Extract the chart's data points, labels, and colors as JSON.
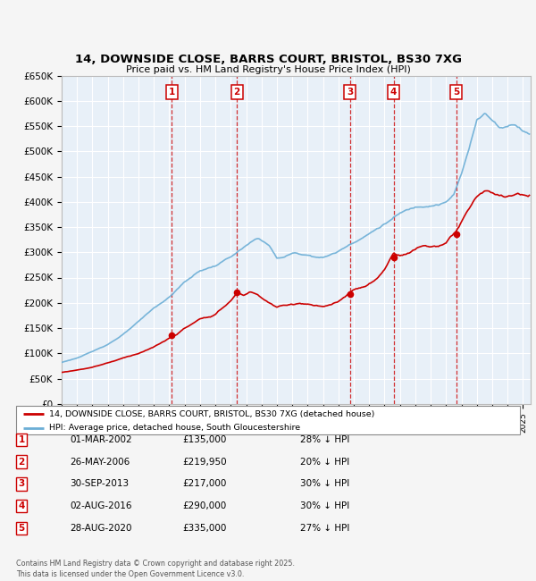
{
  "title": "14, DOWNSIDE CLOSE, BARRS COURT, BRISTOL, BS30 7XG",
  "subtitle": "Price paid vs. HM Land Registry's House Price Index (HPI)",
  "ylim": [
    0,
    650000
  ],
  "yticks": [
    0,
    50000,
    100000,
    150000,
    200000,
    250000,
    300000,
    350000,
    400000,
    450000,
    500000,
    550000,
    600000,
    650000
  ],
  "ytick_labels": [
    "£0",
    "£50K",
    "£100K",
    "£150K",
    "£200K",
    "£250K",
    "£300K",
    "£350K",
    "£400K",
    "£450K",
    "£500K",
    "£550K",
    "£600K",
    "£650K"
  ],
  "hpi_color": "#6baed6",
  "price_color": "#cc0000",
  "plot_bg_color": "#e8f0f8",
  "grid_color": "#ffffff",
  "sale_dates_x": [
    2002.17,
    2006.4,
    2013.75,
    2016.59,
    2020.66
  ],
  "sale_prices_y": [
    135000,
    219950,
    217000,
    290000,
    335000
  ],
  "sale_labels": [
    "1",
    "2",
    "3",
    "4",
    "5"
  ],
  "vline_color": "#cc0000",
  "legend_label_red": "14, DOWNSIDE CLOSE, BARRS COURT, BRISTOL, BS30 7XG (detached house)",
  "legend_label_blue": "HPI: Average price, detached house, South Gloucestershire",
  "table_rows": [
    [
      "1",
      "01-MAR-2002",
      "£135,000",
      "28% ↓ HPI"
    ],
    [
      "2",
      "26-MAY-2006",
      "£219,950",
      "20% ↓ HPI"
    ],
    [
      "3",
      "30-SEP-2013",
      "£217,000",
      "30% ↓ HPI"
    ],
    [
      "4",
      "02-AUG-2016",
      "£290,000",
      "30% ↓ HPI"
    ],
    [
      "5",
      "28-AUG-2020",
      "£335,000",
      "27% ↓ HPI"
    ]
  ],
  "footnote": "Contains HM Land Registry data © Crown copyright and database right 2025.\nThis data is licensed under the Open Government Licence v3.0.",
  "xmin": 1995.0,
  "xmax": 2025.5
}
